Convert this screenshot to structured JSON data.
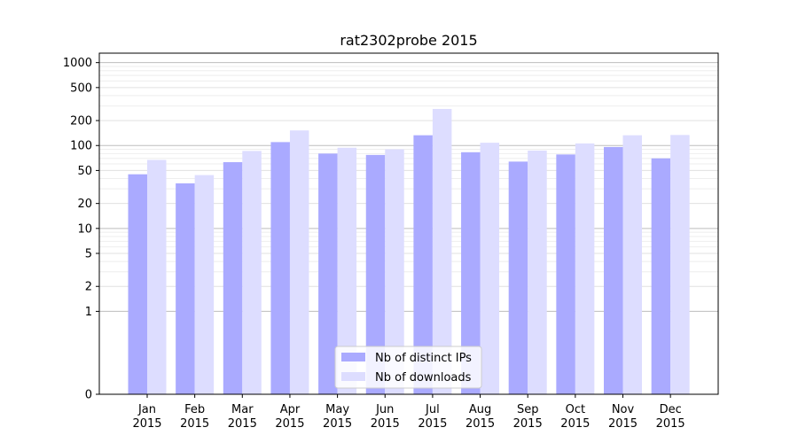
{
  "chart_data": {
    "type": "bar",
    "title": "rat2302probe 2015",
    "xlabel": "",
    "ylabel": "",
    "yscale": "symlog",
    "ylim": [
      0,
      1300
    ],
    "yticks": [
      "0",
      "1",
      "2",
      "5",
      "10",
      "20",
      "50",
      "100",
      "200",
      "500",
      "1000"
    ],
    "grid": "horizontal",
    "legend_position": "bottom-center",
    "categories": [
      [
        "Jan",
        "2015"
      ],
      [
        "Feb",
        "2015"
      ],
      [
        "Mar",
        "2015"
      ],
      [
        "Apr",
        "2015"
      ],
      [
        "May",
        "2015"
      ],
      [
        "Jun",
        "2015"
      ],
      [
        "Jul",
        "2015"
      ],
      [
        "Aug",
        "2015"
      ],
      [
        "Sep",
        "2015"
      ],
      [
        "Oct",
        "2015"
      ],
      [
        "Nov",
        "2015"
      ],
      [
        "Dec",
        "2015"
      ]
    ],
    "series": [
      {
        "name": "Nb of distinct IPs",
        "color": "#aaaaff",
        "values": [
          45,
          35,
          63,
          110,
          80,
          77,
          133,
          83,
          64,
          78,
          96,
          70
        ]
      },
      {
        "name": "Nb of downloads",
        "color": "#ddddff",
        "values": [
          67,
          44,
          86,
          152,
          94,
          90,
          276,
          108,
          87,
          106,
          133,
          134
        ]
      }
    ]
  }
}
